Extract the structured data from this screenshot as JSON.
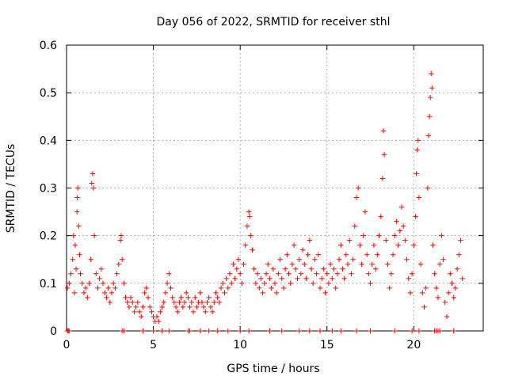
{
  "chart_data": {
    "type": "scatter",
    "title": "Day 056 of 2022, SRMTID for receiver sthl",
    "xlabel": "GPS time / hours",
    "ylabel": "SRMTID / TECUs",
    "xlim": [
      0,
      24
    ],
    "ylim": [
      0,
      0.6
    ],
    "xticks": [
      0,
      5,
      10,
      15,
      20
    ],
    "yticks": [
      0,
      0.1,
      0.2,
      0.3,
      0.4,
      0.5,
      0.6
    ],
    "xtick_labels": [
      "0",
      "5",
      "10",
      "15",
      "20"
    ],
    "ytick_labels": [
      "0",
      "0.1",
      "0.2",
      "0.3",
      "0.4",
      "0.5",
      "0.6"
    ],
    "grid": true,
    "marker": "plus",
    "color": "#ff0000",
    "series": [
      {
        "name": "SRMTID",
        "points": [
          [
            0.05,
            0.09
          ],
          [
            0.15,
            0.1
          ],
          [
            0.25,
            0.12
          ],
          [
            0.35,
            0.15
          ],
          [
            0.4,
            0.2
          ],
          [
            0.45,
            0.08
          ],
          [
            0.5,
            0.18
          ],
          [
            0.55,
            0.13
          ],
          [
            0.6,
            0.25
          ],
          [
            0.62,
            0.28
          ],
          [
            0.65,
            0.3
          ],
          [
            0.7,
            0.22
          ],
          [
            0.75,
            0.16
          ],
          [
            0.8,
            0.12
          ],
          [
            0.9,
            0.1
          ],
          [
            1.0,
            0.08
          ],
          [
            1.1,
            0.09
          ],
          [
            1.2,
            0.07
          ],
          [
            1.3,
            0.1
          ],
          [
            1.4,
            0.15
          ],
          [
            1.45,
            0.31
          ],
          [
            1.5,
            0.33
          ],
          [
            1.55,
            0.3
          ],
          [
            1.6,
            0.2
          ],
          [
            1.7,
            0.12
          ],
          [
            1.8,
            0.09
          ],
          [
            1.9,
            0.11
          ],
          [
            2.0,
            0.13
          ],
          [
            2.1,
            0.1
          ],
          [
            2.2,
            0.08
          ],
          [
            2.3,
            0.07
          ],
          [
            2.4,
            0.09
          ],
          [
            2.5,
            0.06
          ],
          [
            2.6,
            0.08
          ],
          [
            2.7,
            0.1
          ],
          [
            2.8,
            0.09
          ],
          [
            2.9,
            0.12
          ],
          [
            3.0,
            0.14
          ],
          [
            3.1,
            0.19
          ],
          [
            3.15,
            0.2
          ],
          [
            3.2,
            0.15
          ],
          [
            3.3,
            0.1
          ],
          [
            3.4,
            0.07
          ],
          [
            3.5,
            0.06
          ],
          [
            3.6,
            0.05
          ],
          [
            3.7,
            0.07
          ],
          [
            3.8,
            0.06
          ],
          [
            3.9,
            0.04
          ],
          [
            4.0,
            0.05
          ],
          [
            4.1,
            0.06
          ],
          [
            4.2,
            0.04
          ],
          [
            4.3,
            0.03
          ],
          [
            4.4,
            0.05
          ],
          [
            4.5,
            0.08
          ],
          [
            4.6,
            0.09
          ],
          [
            4.7,
            0.07
          ],
          [
            4.8,
            0.05
          ],
          [
            4.9,
            0.04
          ],
          [
            5.0,
            0.03
          ],
          [
            5.1,
            0.02
          ],
          [
            5.2,
            0.03
          ],
          [
            5.3,
            0.02
          ],
          [
            5.4,
            0.04
          ],
          [
            5.5,
            0.05
          ],
          [
            5.6,
            0.06
          ],
          [
            5.7,
            0.08
          ],
          [
            5.8,
            0.1
          ],
          [
            5.9,
            0.12
          ],
          [
            6.0,
            0.09
          ],
          [
            6.1,
            0.07
          ],
          [
            6.2,
            0.06
          ],
          [
            6.3,
            0.05
          ],
          [
            6.4,
            0.04
          ],
          [
            6.5,
            0.06
          ],
          [
            6.6,
            0.07
          ],
          [
            6.7,
            0.05
          ],
          [
            6.8,
            0.06
          ],
          [
            6.9,
            0.08
          ],
          [
            7.0,
            0.07
          ],
          [
            7.1,
            0.05
          ],
          [
            7.2,
            0.06
          ],
          [
            7.3,
            0.04
          ],
          [
            7.4,
            0.07
          ],
          [
            7.5,
            0.05
          ],
          [
            7.6,
            0.06
          ],
          [
            7.7,
            0.08
          ],
          [
            7.8,
            0.06
          ],
          [
            7.9,
            0.05
          ],
          [
            8.0,
            0.04
          ],
          [
            8.1,
            0.06
          ],
          [
            8.2,
            0.07
          ],
          [
            8.3,
            0.05
          ],
          [
            8.4,
            0.04
          ],
          [
            8.5,
            0.06
          ],
          [
            8.6,
            0.08
          ],
          [
            8.7,
            0.07
          ],
          [
            8.8,
            0.06
          ],
          [
            8.9,
            0.09
          ],
          [
            9.0,
            0.1
          ],
          [
            9.1,
            0.08
          ],
          [
            9.2,
            0.11
          ],
          [
            9.3,
            0.09
          ],
          [
            9.4,
            0.12
          ],
          [
            9.5,
            0.1
          ],
          [
            9.6,
            0.14
          ],
          [
            9.7,
            0.11
          ],
          [
            9.8,
            0.13
          ],
          [
            9.9,
            0.15
          ],
          [
            10.0,
            0.12
          ],
          [
            10.1,
            0.1
          ],
          [
            10.2,
            0.14
          ],
          [
            10.3,
            0.18
          ],
          [
            10.4,
            0.22
          ],
          [
            10.5,
            0.25
          ],
          [
            10.55,
            0.24
          ],
          [
            10.6,
            0.2
          ],
          [
            10.7,
            0.17
          ],
          [
            10.8,
            0.13
          ],
          [
            10.9,
            0.1
          ],
          [
            11.0,
            0.12
          ],
          [
            11.1,
            0.09
          ],
          [
            11.2,
            0.11
          ],
          [
            11.3,
            0.08
          ],
          [
            11.4,
            0.1
          ],
          [
            11.5,
            0.12
          ],
          [
            11.6,
            0.14
          ],
          [
            11.7,
            0.11
          ],
          [
            11.8,
            0.09
          ],
          [
            11.9,
            0.13
          ],
          [
            12.0,
            0.1
          ],
          [
            12.1,
            0.08
          ],
          [
            12.2,
            0.12
          ],
          [
            12.3,
            0.15
          ],
          [
            12.4,
            0.11
          ],
          [
            12.5,
            0.09
          ],
          [
            12.6,
            0.13
          ],
          [
            12.7,
            0.16
          ],
          [
            12.8,
            0.12
          ],
          [
            12.9,
            0.1
          ],
          [
            13.0,
            0.14
          ],
          [
            13.1,
            0.18
          ],
          [
            13.2,
            0.13
          ],
          [
            13.3,
            0.11
          ],
          [
            13.4,
            0.15
          ],
          [
            13.5,
            0.12
          ],
          [
            13.6,
            0.17
          ],
          [
            13.7,
            0.14
          ],
          [
            13.8,
            0.11
          ],
          [
            13.9,
            0.16
          ],
          [
            14.0,
            0.19
          ],
          [
            14.1,
            0.13
          ],
          [
            14.2,
            0.1
          ],
          [
            14.3,
            0.15
          ],
          [
            14.4,
            0.12
          ],
          [
            14.5,
            0.16
          ],
          [
            14.6,
            0.09
          ],
          [
            14.7,
            0.11
          ],
          [
            14.8,
            0.13
          ],
          [
            14.9,
            0.08
          ],
          [
            15.0,
            0.12
          ],
          [
            15.1,
            0.1
          ],
          [
            15.2,
            0.14
          ],
          [
            15.3,
            0.11
          ],
          [
            15.4,
            0.13
          ],
          [
            15.5,
            0.09
          ],
          [
            15.6,
            0.12
          ],
          [
            15.7,
            0.15
          ],
          [
            15.8,
            0.18
          ],
          [
            15.9,
            0.13
          ],
          [
            16.0,
            0.11
          ],
          [
            16.1,
            0.16
          ],
          [
            16.2,
            0.14
          ],
          [
            16.3,
            0.19
          ],
          [
            16.4,
            0.12
          ],
          [
            16.5,
            0.15
          ],
          [
            16.6,
            0.22
          ],
          [
            16.7,
            0.28
          ],
          [
            16.8,
            0.3
          ],
          [
            16.9,
            0.18
          ],
          [
            17.0,
            0.14
          ],
          [
            17.1,
            0.2
          ],
          [
            17.2,
            0.25
          ],
          [
            17.3,
            0.16
          ],
          [
            17.4,
            0.12
          ],
          [
            17.5,
            0.1
          ],
          [
            17.6,
            0.14
          ],
          [
            17.7,
            0.18
          ],
          [
            17.8,
            0.13
          ],
          [
            17.9,
            0.16
          ],
          [
            18.0,
            0.2
          ],
          [
            18.1,
            0.24
          ],
          [
            18.2,
            0.32
          ],
          [
            18.25,
            0.42
          ],
          [
            18.3,
            0.37
          ],
          [
            18.4,
            0.19
          ],
          [
            18.5,
            0.14
          ],
          [
            18.6,
            0.09
          ],
          [
            18.7,
            0.12
          ],
          [
            18.8,
            0.16
          ],
          [
            18.9,
            0.2
          ],
          [
            19.0,
            0.23
          ],
          [
            19.1,
            0.18
          ],
          [
            19.2,
            0.21
          ],
          [
            19.3,
            0.26
          ],
          [
            19.4,
            0.22
          ],
          [
            19.5,
            0.19
          ],
          [
            19.6,
            0.15
          ],
          [
            19.7,
            0.11
          ],
          [
            19.8,
            0.08
          ],
          [
            19.9,
            0.12
          ],
          [
            20.0,
            0.18
          ],
          [
            20.1,
            0.24
          ],
          [
            20.15,
            0.33
          ],
          [
            20.2,
            0.38
          ],
          [
            20.25,
            0.4
          ],
          [
            20.3,
            0.28
          ],
          [
            20.4,
            0.14
          ],
          [
            20.5,
            0.08
          ],
          [
            20.6,
            0.05
          ],
          [
            20.7,
            0.09
          ],
          [
            20.8,
            0.3
          ],
          [
            20.85,
            0.41
          ],
          [
            20.9,
            0.45
          ],
          [
            20.95,
            0.49
          ],
          [
            21.0,
            0.54
          ],
          [
            21.05,
            0.51
          ],
          [
            21.1,
            0.18
          ],
          [
            21.2,
            0.12
          ],
          [
            21.3,
            0.09
          ],
          [
            21.4,
            0.07
          ],
          [
            21.5,
            0.14
          ],
          [
            21.6,
            0.2
          ],
          [
            21.7,
            0.15
          ],
          [
            21.8,
            0.06
          ],
          [
            21.9,
            0.03
          ],
          [
            22.0,
            0.08
          ],
          [
            22.1,
            0.12
          ],
          [
            22.2,
            0.1
          ],
          [
            22.3,
            0.07
          ],
          [
            22.4,
            0.09
          ],
          [
            22.5,
            0.13
          ],
          [
            22.6,
            0.16
          ],
          [
            22.7,
            0.19
          ],
          [
            22.8,
            0.11
          ]
        ],
        "zero_points": [
          0.05,
          0.1,
          0.15,
          3.2,
          3.3,
          4.4,
          5.0,
          5.5,
          5.9,
          7.0,
          7.1,
          7.7,
          8.2,
          8.7,
          9.3,
          10.0,
          10.5,
          11.7,
          12.4,
          13.4,
          14.0,
          14.6,
          15.3,
          15.8,
          16.7,
          17.5,
          18.9,
          19.9,
          20.3,
          21.2,
          21.3,
          21.4,
          21.5,
          22.3
        ]
      }
    ]
  }
}
